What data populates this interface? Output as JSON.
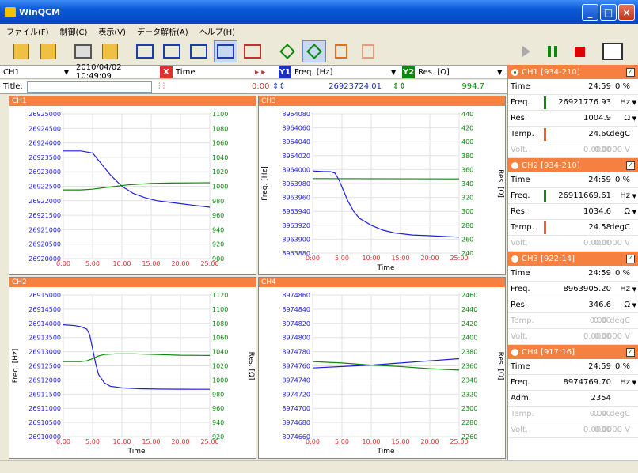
{
  "window": {
    "title": "WinQCM"
  },
  "menu": [
    "ファイル(F)",
    "制御(C)",
    "表示(V)",
    "データ解析(A)",
    "ヘルプ(H)"
  ],
  "toolbar": {
    "buttons": [
      "new-icon",
      "open-icon",
      "print-icon",
      "clipboard-icon",
      "layout-1-icon",
      "layout-2-icon",
      "layout-3-icon",
      "layout-4-icon",
      "layout-5-icon",
      "cursor-a-icon",
      "cursor-b-icon",
      "marker-a-icon",
      "marker-b-icon"
    ],
    "selected": "layout-4-icon"
  },
  "channel_bar": {
    "channel": "CH1",
    "datetime": "2010/04/02 10:49:09",
    "x_badge": "X",
    "x_axis": "Time",
    "y1_badge": "Y1",
    "y1_axis": "Freq. [Hz]",
    "y2_badge": "Y2",
    "y2_axis": "Res. [Ω]"
  },
  "title_bar": {
    "title_label": "Title:",
    "title_value": "",
    "x_cursor": "0:00",
    "y1_cursor": "26923724.01",
    "y2_cursor": "994.7"
  },
  "colors": {
    "orange": "#f5803f",
    "freq": "#1e1ee0",
    "res": "#0a8a0a",
    "accent_red": "#e03030"
  },
  "right_toolbar": [
    "play-icon",
    "pause-icon",
    "stop-icon",
    "pen-icon"
  ],
  "channels": [
    {
      "header": "CH1 [934-210]",
      "selected": true,
      "rows": [
        {
          "label": "Time",
          "value": "24:59",
          "unit": "0 %",
          "bar": "",
          "arrow": false,
          "dim": false
        },
        {
          "label": "Freq.",
          "value": "26921776.93",
          "unit": "Hz",
          "bar": "green",
          "arrow": true,
          "dim": false
        },
        {
          "label": "Res.",
          "value": "1004.9",
          "unit": "Ω",
          "bar": "",
          "arrow": true,
          "dim": false
        },
        {
          "label": "Temp.",
          "value": "24.60",
          "unit": "degC",
          "bar": "red",
          "arrow": false,
          "dim": false
        },
        {
          "label": "Volt.",
          "value": "0.0000",
          "unit": "0.0000 V",
          "bar": "",
          "arrow": false,
          "dim": true
        }
      ]
    },
    {
      "header": "CH2 [934-210]",
      "selected": false,
      "rows": [
        {
          "label": "Time",
          "value": "24:59",
          "unit": "0 %",
          "bar": "",
          "arrow": false,
          "dim": false
        },
        {
          "label": "Freq.",
          "value": "26911669.61",
          "unit": "Hz",
          "bar": "green",
          "arrow": true,
          "dim": false
        },
        {
          "label": "Res.",
          "value": "1034.6",
          "unit": "Ω",
          "bar": "",
          "arrow": true,
          "dim": false
        },
        {
          "label": "Temp.",
          "value": "24.58",
          "unit": "degC",
          "bar": "red",
          "arrow": false,
          "dim": false
        },
        {
          "label": "Volt.",
          "value": "0.0000",
          "unit": "0.0000 V",
          "bar": "",
          "arrow": false,
          "dim": true
        }
      ]
    },
    {
      "header": "CH3 [922:14]",
      "selected": false,
      "rows": [
        {
          "label": "Time",
          "value": "24:59",
          "unit": "0 %",
          "bar": "",
          "arrow": false,
          "dim": false
        },
        {
          "label": "Freq.",
          "value": "8963905.20",
          "unit": "Hz",
          "bar": "",
          "arrow": true,
          "dim": false
        },
        {
          "label": "Res.",
          "value": "346.6",
          "unit": "Ω",
          "bar": "",
          "arrow": true,
          "dim": false
        },
        {
          "label": "Temp.",
          "value": "0.00",
          "unit": "0.00 degC",
          "bar": "",
          "arrow": false,
          "dim": true
        },
        {
          "label": "Volt.",
          "value": "0.0000",
          "unit": "0.0000 V",
          "bar": "",
          "arrow": false,
          "dim": true
        }
      ]
    },
    {
      "header": "CH4 [917:16]",
      "selected": false,
      "rows": [
        {
          "label": "Time",
          "value": "24:59",
          "unit": "0 %",
          "bar": "",
          "arrow": false,
          "dim": false
        },
        {
          "label": "Freq.",
          "value": "8974769.70",
          "unit": "Hz",
          "bar": "",
          "arrow": true,
          "dim": false
        },
        {
          "label": "Adm.",
          "value": "2354",
          "unit": "",
          "bar": "",
          "arrow": false,
          "dim": false
        },
        {
          "label": "Temp.",
          "value": "0.00",
          "unit": "0.00 degC",
          "bar": "",
          "arrow": false,
          "dim": true
        },
        {
          "label": "Volt.",
          "value": "0.0000",
          "unit": "0.0000 V",
          "bar": "",
          "arrow": false,
          "dim": true
        }
      ]
    }
  ],
  "chart_data": [
    {
      "type": "line",
      "title": "CH1",
      "xlabel": "",
      "ylabel": "",
      "y2label": "",
      "xticks": [
        "0:00",
        "5:00",
        "10:00",
        "15:00",
        "20:00",
        "25:00"
      ],
      "xlim": [
        0,
        25
      ],
      "ylim": [
        26920000,
        26925000
      ],
      "yticks": [
        "26925000",
        "26924500",
        "26924000",
        "26923500",
        "26923000",
        "26922500",
        "26922000",
        "26921500",
        "26921000",
        "26920500",
        "26920000"
      ],
      "y2lim": [
        900,
        1100
      ],
      "y2ticks": [
        "1100",
        "1080",
        "1060",
        "1040",
        "1020",
        "1000",
        "980",
        "960",
        "940",
        "920",
        "900"
      ],
      "series": [
        {
          "axis": "y1",
          "color": "#1e1ee0",
          "x": [
            0,
            3,
            5,
            6,
            8,
            10,
            12,
            14,
            16,
            18,
            20,
            22,
            25
          ],
          "y": [
            26923720,
            26923720,
            26923650,
            26923400,
            26922900,
            26922500,
            26922250,
            26922100,
            26922000,
            26921950,
            26921900,
            26921850,
            26921777
          ]
        },
        {
          "axis": "y2",
          "color": "#0a8a0a",
          "x": [
            0,
            3,
            5,
            7,
            9,
            11,
            13,
            15,
            18,
            25
          ],
          "y": [
            995,
            995,
            996,
            998,
            1000,
            1002,
            1003,
            1004,
            1004.5,
            1004.9
          ]
        }
      ]
    },
    {
      "type": "line",
      "title": "CH3",
      "xlabel": "Time",
      "ylabel": "Freq. [Hz]",
      "y2label": "Res. [Ω]",
      "xticks": [
        "0:00",
        "5:00",
        "10:00",
        "15:00",
        "20:00",
        "25:00"
      ],
      "xlim": [
        0,
        25
      ],
      "ylim": [
        8963880,
        8964080
      ],
      "yticks": [
        "8964080",
        "8964060",
        "8964040",
        "8964020",
        "8964000",
        "8963980",
        "8963960",
        "8963940",
        "8963920",
        "8963900",
        "8963880"
      ],
      "y2lim": [
        240,
        440
      ],
      "y2ticks": [
        "440",
        "420",
        "400",
        "380",
        "360",
        "340",
        "320",
        "300",
        "280",
        "260",
        "240"
      ],
      "series": [
        {
          "axis": "y1",
          "color": "#1e1ee0",
          "x": [
            0,
            2,
            3,
            3.8,
            4.5,
            5,
            6,
            7,
            8,
            10,
            12,
            14,
            17,
            20,
            25
          ],
          "y": [
            8963998,
            8963997,
            8963997,
            8963995,
            8963985,
            8963975,
            8963955,
            8963940,
            8963930,
            8963920,
            8963913,
            8963909,
            8963906,
            8963905,
            8963903
          ]
        },
        {
          "axis": "y2",
          "color": "#0a8a0a",
          "x": [
            0,
            25
          ],
          "y": [
            347,
            346.6
          ]
        }
      ]
    },
    {
      "type": "line",
      "title": "CH2",
      "xlabel": "Time",
      "ylabel": "Freq. [Hz]",
      "y2label": "Res. [Ω]",
      "xticks": [
        "0:00",
        "5:00",
        "10:00",
        "15:00",
        "20:00",
        "25:00"
      ],
      "xlim": [
        0,
        25
      ],
      "ylim": [
        26910000,
        26915000
      ],
      "yticks": [
        "26915000",
        "26914500",
        "26914000",
        "26913500",
        "26913000",
        "26912500",
        "26912000",
        "26911500",
        "26911000",
        "26910500",
        "26910000"
      ],
      "y2lim": [
        920,
        1120
      ],
      "y2ticks": [
        "1120",
        "1100",
        "1080",
        "1060",
        "1040",
        "1020",
        "1000",
        "980",
        "960",
        "940",
        "920"
      ],
      "series": [
        {
          "axis": "y1",
          "color": "#1e1ee0",
          "x": [
            0,
            2,
            3,
            4,
            4.5,
            5,
            5.5,
            6,
            7,
            8,
            10,
            13,
            16,
            20,
            25
          ],
          "y": [
            26913950,
            26913920,
            26913880,
            26913800,
            26913600,
            26913100,
            26912600,
            26912200,
            26911900,
            26911780,
            26911720,
            26911690,
            26911680,
            26911672,
            26911670
          ]
        },
        {
          "axis": "y2",
          "color": "#0a8a0a",
          "x": [
            0,
            3,
            4,
            5,
            6,
            7,
            9,
            12,
            16,
            20,
            25
          ],
          "y": [
            1026,
            1026,
            1027,
            1030,
            1034,
            1036,
            1037,
            1037,
            1036,
            1035,
            1034.6
          ]
        }
      ]
    },
    {
      "type": "line",
      "title": "CH4",
      "xlabel": "Time",
      "ylabel": "",
      "y2label": "Res. [Ω]",
      "xticks": [
        "0:00",
        "5:00",
        "10:00",
        "15:00",
        "20:00",
        "25:00"
      ],
      "xlim": [
        0,
        25
      ],
      "ylim": [
        8974660,
        8974860
      ],
      "yticks": [
        "8974860",
        "8974840",
        "8974820",
        "8974800",
        "8974780",
        "8974760",
        "8974740",
        "8974720",
        "8974700",
        "8974680",
        "8974660"
      ],
      "y2lim": [
        2260,
        2460
      ],
      "y2ticks": [
        "2460",
        "2440",
        "2420",
        "2400",
        "2380",
        "2360",
        "2340",
        "2320",
        "2300",
        "2280",
        "2260"
      ],
      "series": [
        {
          "axis": "y1",
          "color": "#1e1ee0",
          "x": [
            0,
            5,
            10,
            15,
            20,
            25
          ],
          "y": [
            8974757,
            8974759,
            8974761,
            8974764,
            8974767,
            8974770
          ]
        },
        {
          "axis": "y2",
          "color": "#0a8a0a",
          "x": [
            0,
            5,
            10,
            15,
            20,
            25
          ],
          "y": [
            2366,
            2364,
            2361,
            2359,
            2356,
            2354
          ]
        }
      ]
    }
  ]
}
